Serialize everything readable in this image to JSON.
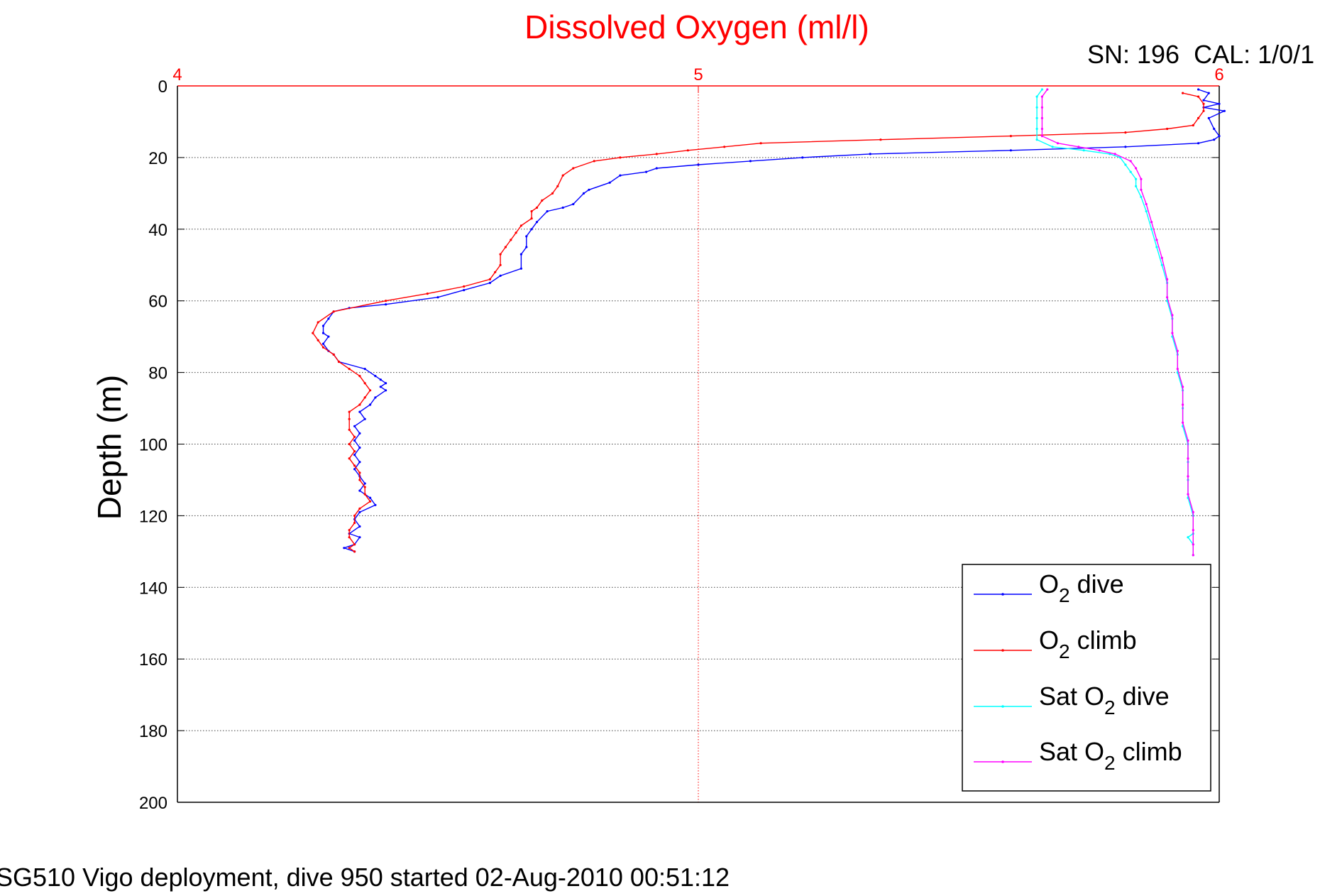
{
  "chart_data": {
    "type": "line",
    "title": "Dissolved Oxygen (ml/l)",
    "calibration_label": "SN: 196  CAL: 1/0/1",
    "ylabel": "Depth (m)",
    "footer": "SG510 Vigo deployment, dive 950 started 02-Aug-2010 00:51:12",
    "xlim": [
      4,
      6
    ],
    "ylim": [
      0,
      200
    ],
    "y_reversed": true,
    "x_axis_position": "top",
    "xticks": [
      "4",
      "5",
      "6"
    ],
    "yticks": [
      "0",
      "20",
      "40",
      "60",
      "80",
      "100",
      "120",
      "140",
      "160",
      "180",
      "200"
    ],
    "grid": true,
    "legend_position": "bottom-right",
    "legend": [
      {
        "base": "O",
        "sub": "2",
        "suffix": " dive",
        "color": "#0000ff"
      },
      {
        "base": "O",
        "sub": "2",
        "suffix": " climb",
        "color": "#ff0000"
      },
      {
        "base": "Sat O",
        "sub": "2",
        "suffix": " dive",
        "color": "#00ffff"
      },
      {
        "base": "Sat O",
        "sub": "2",
        "suffix": " climb",
        "color": "#ff00ff"
      }
    ],
    "colors": {
      "title": "#ff0000",
      "x_axis": "#ff0000",
      "grid": "#444444"
    },
    "series": [
      {
        "name": "O2 dive",
        "color": "#0000ff",
        "points": [
          [
            5.96,
            1
          ],
          [
            5.98,
            2
          ],
          [
            5.97,
            4
          ],
          [
            6.0,
            5
          ],
          [
            5.97,
            6
          ],
          [
            6.01,
            7
          ],
          [
            5.98,
            9
          ],
          [
            5.99,
            12
          ],
          [
            6.0,
            14
          ],
          [
            5.99,
            15
          ],
          [
            5.96,
            16
          ],
          [
            5.82,
            17
          ],
          [
            5.6,
            18
          ],
          [
            5.33,
            19
          ],
          [
            5.2,
            20
          ],
          [
            5.1,
            21
          ],
          [
            5.0,
            22
          ],
          [
            4.92,
            23
          ],
          [
            4.9,
            24
          ],
          [
            4.85,
            25
          ],
          [
            4.83,
            27
          ],
          [
            4.79,
            29
          ],
          [
            4.78,
            30
          ],
          [
            4.76,
            33
          ],
          [
            4.74,
            34
          ],
          [
            4.71,
            35
          ],
          [
            4.69,
            38
          ],
          [
            4.68,
            40
          ],
          [
            4.67,
            42
          ],
          [
            4.67,
            45
          ],
          [
            4.66,
            47
          ],
          [
            4.66,
            51
          ],
          [
            4.62,
            53
          ],
          [
            4.6,
            55
          ],
          [
            4.55,
            57
          ],
          [
            4.5,
            59
          ],
          [
            4.4,
            61
          ],
          [
            4.33,
            62
          ],
          [
            4.3,
            63
          ],
          [
            4.29,
            65
          ],
          [
            4.28,
            67
          ],
          [
            4.28,
            69
          ],
          [
            4.29,
            70
          ],
          [
            4.28,
            72
          ],
          [
            4.29,
            74
          ],
          [
            4.3,
            75
          ],
          [
            4.31,
            77
          ],
          [
            4.36,
            79
          ],
          [
            4.38,
            81
          ],
          [
            4.39,
            82
          ],
          [
            4.4,
            83
          ],
          [
            4.39,
            84
          ],
          [
            4.4,
            85
          ],
          [
            4.38,
            87
          ],
          [
            4.37,
            89
          ],
          [
            4.35,
            91
          ],
          [
            4.36,
            93
          ],
          [
            4.34,
            95
          ],
          [
            4.35,
            97
          ],
          [
            4.34,
            99
          ],
          [
            4.35,
            101
          ],
          [
            4.34,
            103
          ],
          [
            4.35,
            105
          ],
          [
            4.34,
            107
          ],
          [
            4.35,
            109
          ],
          [
            4.36,
            111
          ],
          [
            4.35,
            113
          ],
          [
            4.37,
            115
          ],
          [
            4.38,
            117
          ],
          [
            4.35,
            119
          ],
          [
            4.34,
            121
          ],
          [
            4.35,
            123
          ],
          [
            4.33,
            125
          ],
          [
            4.35,
            126
          ],
          [
            4.34,
            128
          ],
          [
            4.32,
            129
          ],
          [
            4.34,
            130
          ]
        ]
      },
      {
        "name": "O2 climb",
        "color": "#ff0000",
        "points": [
          [
            5.93,
            2
          ],
          [
            5.96,
            3
          ],
          [
            5.97,
            5
          ],
          [
            5.97,
            7
          ],
          [
            5.96,
            9
          ],
          [
            5.95,
            11
          ],
          [
            5.9,
            12
          ],
          [
            5.82,
            13
          ],
          [
            5.6,
            14
          ],
          [
            5.35,
            15
          ],
          [
            5.12,
            16
          ],
          [
            5.05,
            17
          ],
          [
            4.98,
            18
          ],
          [
            4.92,
            19
          ],
          [
            4.85,
            20
          ],
          [
            4.8,
            21
          ],
          [
            4.76,
            23
          ],
          [
            4.74,
            25
          ],
          [
            4.73,
            28
          ],
          [
            4.72,
            30
          ],
          [
            4.7,
            32
          ],
          [
            4.69,
            34
          ],
          [
            4.68,
            35
          ],
          [
            4.68,
            37
          ],
          [
            4.66,
            39
          ],
          [
            4.65,
            41
          ],
          [
            4.64,
            43
          ],
          [
            4.63,
            45
          ],
          [
            4.62,
            47
          ],
          [
            4.62,
            50
          ],
          [
            4.61,
            52
          ],
          [
            4.6,
            54
          ],
          [
            4.55,
            56
          ],
          [
            4.48,
            58
          ],
          [
            4.4,
            60
          ],
          [
            4.3,
            63
          ],
          [
            4.27,
            66
          ],
          [
            4.26,
            69
          ],
          [
            4.27,
            71
          ],
          [
            4.28,
            73
          ],
          [
            4.3,
            75
          ],
          [
            4.31,
            77
          ],
          [
            4.33,
            79
          ],
          [
            4.35,
            81
          ],
          [
            4.36,
            83
          ],
          [
            4.37,
            85
          ],
          [
            4.36,
            87
          ],
          [
            4.35,
            89
          ],
          [
            4.33,
            91
          ],
          [
            4.33,
            93
          ],
          [
            4.33,
            96
          ],
          [
            4.34,
            98
          ],
          [
            4.33,
            100
          ],
          [
            4.34,
            102
          ],
          [
            4.33,
            104
          ],
          [
            4.34,
            106
          ],
          [
            4.35,
            108
          ],
          [
            4.35,
            110
          ],
          [
            4.36,
            112
          ],
          [
            4.36,
            114
          ],
          [
            4.37,
            116
          ],
          [
            4.35,
            118
          ],
          [
            4.34,
            120
          ],
          [
            4.34,
            122
          ],
          [
            4.33,
            124
          ],
          [
            4.33,
            126
          ],
          [
            4.34,
            128
          ],
          [
            4.33,
            129
          ],
          [
            4.34,
            130
          ]
        ]
      },
      {
        "name": "Sat O2 dive",
        "color": "#00ffff",
        "points": [
          [
            5.66,
            1
          ],
          [
            5.65,
            3
          ],
          [
            5.65,
            6
          ],
          [
            5.65,
            9
          ],
          [
            5.65,
            12
          ],
          [
            5.65,
            15
          ],
          [
            5.68,
            17
          ],
          [
            5.74,
            18
          ],
          [
            5.79,
            19
          ],
          [
            5.81,
            20
          ],
          [
            5.82,
            22
          ],
          [
            5.83,
            24
          ],
          [
            5.84,
            26
          ],
          [
            5.84,
            28
          ],
          [
            5.85,
            31
          ],
          [
            5.86,
            35
          ],
          [
            5.87,
            40
          ],
          [
            5.88,
            45
          ],
          [
            5.89,
            50
          ],
          [
            5.9,
            55
          ],
          [
            5.9,
            60
          ],
          [
            5.91,
            65
          ],
          [
            5.91,
            70
          ],
          [
            5.92,
            75
          ],
          [
            5.92,
            80
          ],
          [
            5.93,
            85
          ],
          [
            5.93,
            90
          ],
          [
            5.93,
            95
          ],
          [
            5.94,
            100
          ],
          [
            5.94,
            105
          ],
          [
            5.94,
            110
          ],
          [
            5.94,
            115
          ],
          [
            5.95,
            120
          ],
          [
            5.95,
            125
          ],
          [
            5.94,
            126
          ],
          [
            5.95,
            128
          ],
          [
            5.95,
            131
          ]
        ]
      },
      {
        "name": "Sat O2 climb",
        "color": "#ff00ff",
        "points": [
          [
            5.67,
            1
          ],
          [
            5.66,
            3
          ],
          [
            5.66,
            6
          ],
          [
            5.66,
            9
          ],
          [
            5.66,
            12
          ],
          [
            5.66,
            14
          ],
          [
            5.69,
            16
          ],
          [
            5.73,
            17
          ],
          [
            5.77,
            18
          ],
          [
            5.8,
            19
          ],
          [
            5.83,
            21
          ],
          [
            5.84,
            23
          ],
          [
            5.85,
            26
          ],
          [
            5.85,
            29
          ],
          [
            5.86,
            33
          ],
          [
            5.87,
            38
          ],
          [
            5.88,
            43
          ],
          [
            5.89,
            48
          ],
          [
            5.9,
            54
          ],
          [
            5.9,
            59
          ],
          [
            5.91,
            64
          ],
          [
            5.91,
            69
          ],
          [
            5.92,
            74
          ],
          [
            5.92,
            79
          ],
          [
            5.93,
            84
          ],
          [
            5.93,
            89
          ],
          [
            5.93,
            94
          ],
          [
            5.94,
            99
          ],
          [
            5.94,
            104
          ],
          [
            5.94,
            109
          ],
          [
            5.94,
            114
          ],
          [
            5.95,
            119
          ],
          [
            5.95,
            124
          ],
          [
            5.95,
            128
          ],
          [
            5.95,
            131
          ]
        ]
      }
    ]
  }
}
